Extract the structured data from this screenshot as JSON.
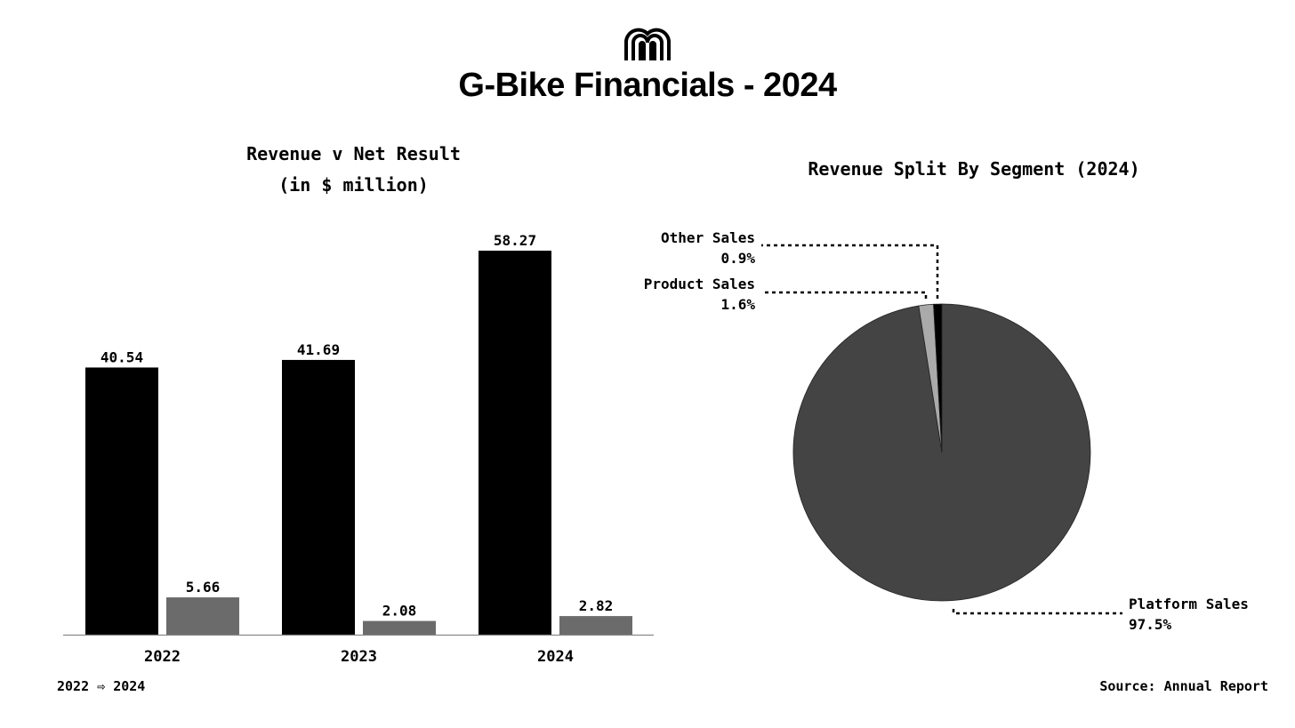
{
  "header": {
    "title": "G-Bike Financials - 2024",
    "logo_icon": "arches-logo-icon"
  },
  "bar_chart": {
    "title": "Revenue v Net Result",
    "subtitle": "(in $ million)"
  },
  "pie_chart": {
    "title": "Revenue Split By Segment (2024)"
  },
  "footer": {
    "period": "2022 ⇨ 2024",
    "source": "Source: Annual Report"
  },
  "colors": {
    "revenue": "#000000",
    "net_result": "#6b6b6b",
    "platform": "#444444",
    "product": "#aaaaaa",
    "other": "#000000"
  },
  "chart_data": [
    {
      "type": "bar",
      "title": "Revenue v Net Result",
      "subtitle": "(in $ million)",
      "categories": [
        "2022",
        "2023",
        "2024"
      ],
      "series": [
        {
          "values": [
            40.54,
            41.69,
            58.27
          ]
        },
        {
          "values": [
            5.66,
            2.08,
            2.82
          ]
        }
      ],
      "data_labels": [
        "40.54",
        "41.69",
        "58.27",
        "5.66",
        "2.08",
        "2.82"
      ],
      "ylim": [
        0,
        60
      ],
      "grid": false,
      "legend": "none"
    },
    {
      "type": "pie",
      "title": "Revenue Split By Segment (2024)",
      "slices": [
        {
          "label": "Platform Sales",
          "value": 97.5,
          "pct_label": "97.5%"
        },
        {
          "label": "Product Sales",
          "value": 1.6,
          "pct_label": "1.6%"
        },
        {
          "label": "Other Sales",
          "value": 0.9,
          "pct_label": "0.9%"
        }
      ],
      "legend": "none"
    }
  ]
}
